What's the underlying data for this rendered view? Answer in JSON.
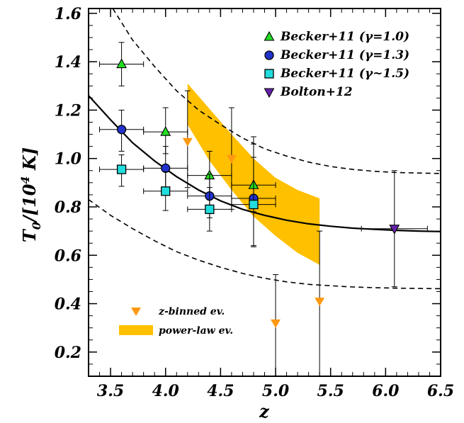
{
  "chart_data": {
    "type": "scatter",
    "xlabel": "z",
    "ylabel_main": "T",
    "ylabel_sub": "0",
    "ylabel_rest": "/[10",
    "ylabel_sup": "4",
    "ylabel_tail": " K]",
    "xlim": [
      3.3,
      6.5
    ],
    "ylim": [
      0.1,
      1.62
    ],
    "x_ticks": [
      "3.5",
      "4.0",
      "4.5",
      "5.0",
      "5.5",
      "6.0",
      "6.5"
    ],
    "y_ticks": [
      "0.2",
      "0.4",
      "0.6",
      "0.8",
      "1.0",
      "1.2",
      "1.4",
      "1.6"
    ],
    "legend": [
      {
        "label": "Becker+11 (γ=1.0)",
        "marker": "triangle-up",
        "color": "#22dd22"
      },
      {
        "label": "Becker+11 (γ=1.3)",
        "marker": "circle",
        "color": "#2233cc"
      },
      {
        "label": "Becker+11 (γ~1.5)",
        "marker": "square",
        "color": "#22dddd"
      },
      {
        "label": "Bolton+12",
        "marker": "triangle-down",
        "color": "#6622aa"
      }
    ],
    "legend2": [
      {
        "label": "z-binned ev.",
        "marker": "triangle-down-small",
        "color": "#ff9911"
      },
      {
        "label": "power-law ev.",
        "marker": "band",
        "color": "#ffc000"
      }
    ],
    "series": [
      {
        "marker": "triangle-up",
        "color": "#22dd22",
        "points": [
          {
            "x": 3.6,
            "y": 1.39,
            "xerr": [
              0.2,
              0.2
            ],
            "yerr": [
              0.09,
              0.09
            ]
          },
          {
            "x": 4.0,
            "y": 1.11,
            "xerr": [
              0.2,
              0.2
            ],
            "yerr": [
              0.09,
              0.1
            ]
          },
          {
            "x": 4.4,
            "y": 0.93,
            "xerr": [
              0.2,
              0.2
            ],
            "yerr": [
              0.08,
              0.1
            ]
          },
          {
            "x": 4.8,
            "y": 0.89,
            "xerr": [
              0.2,
              0.2
            ],
            "yerr": [
              0.11,
              0.2
            ]
          }
        ]
      },
      {
        "marker": "circle",
        "color": "#2233cc",
        "points": [
          {
            "x": 3.6,
            "y": 1.12,
            "xerr": [
              0.2,
              0.2
            ],
            "yerr": [
              0.09,
              0.08
            ]
          },
          {
            "x": 4.0,
            "y": 0.96,
            "xerr": [
              0.2,
              0.2
            ],
            "yerr": [
              0.09,
              0.09
            ]
          },
          {
            "x": 4.4,
            "y": 0.845,
            "xerr": [
              0.2,
              0.2
            ],
            "yerr": [
              0.09,
              0.09
            ]
          },
          {
            "x": 4.8,
            "y": 0.835,
            "xerr": [
              0.2,
              0.2
            ],
            "yerr": [
              0.2,
              0.17
            ]
          }
        ]
      },
      {
        "marker": "square",
        "color": "#22dddd",
        "points": [
          {
            "x": 3.6,
            "y": 0.955,
            "xerr": [
              0.2,
              0.2
            ],
            "yerr": [
              0.07,
              0.06
            ]
          },
          {
            "x": 4.0,
            "y": 0.865,
            "xerr": [
              0.2,
              0.2
            ],
            "yerr": [
              0.08,
              0.08
            ]
          },
          {
            "x": 4.4,
            "y": 0.79,
            "xerr": [
              0.2,
              0.2
            ],
            "yerr": [
              0.09,
              0.09
            ]
          },
          {
            "x": 4.8,
            "y": 0.81,
            "xerr": [
              0.2,
              0.2
            ],
            "yerr": [
              0.17,
              0.25
            ]
          }
        ]
      },
      {
        "marker": "triangle-down",
        "color": "#6622aa",
        "points": [
          {
            "x": 6.08,
            "y": 0.71,
            "xerr": [
              0.3,
              0.3
            ],
            "yerr": [
              0.24,
              0.24
            ]
          }
        ]
      },
      {
        "marker": "triangle-down-small",
        "color": "#ff9911",
        "points": [
          {
            "x": 4.2,
            "y": 1.07,
            "yerr": [
              0.19,
              0.21
            ]
          },
          {
            "x": 4.6,
            "y": 1.0,
            "yerr": [
              0.21,
              0.21
            ]
          },
          {
            "x": 5.0,
            "y": 0.32,
            "yerr": [
              0.22,
              0.2
            ]
          },
          {
            "x": 5.4,
            "y": 0.41,
            "yerr": [
              0.31,
              0.29
            ]
          }
        ]
      }
    ],
    "band": {
      "color": "#ffc000",
      "upper": [
        [
          4.2,
          1.31
        ],
        [
          4.4,
          1.205
        ],
        [
          4.6,
          1.1
        ],
        [
          4.8,
          1.0
        ],
        [
          5.0,
          0.92
        ],
        [
          5.2,
          0.87
        ],
        [
          5.4,
          0.835
        ]
      ],
      "lower": [
        [
          4.2,
          1.14
        ],
        [
          4.4,
          0.99
        ],
        [
          4.6,
          0.87
        ],
        [
          4.8,
          0.76
        ],
        [
          5.0,
          0.68
        ],
        [
          5.2,
          0.61
        ],
        [
          5.4,
          0.56
        ]
      ]
    },
    "curves": [
      {
        "style": "solid",
        "points": [
          [
            3.3,
            1.26
          ],
          [
            3.5,
            1.16
          ],
          [
            3.7,
            1.065
          ],
          [
            3.9,
            0.99
          ],
          [
            4.1,
            0.925
          ],
          [
            4.3,
            0.87
          ],
          [
            4.5,
            0.825
          ],
          [
            4.7,
            0.79
          ],
          [
            4.9,
            0.765
          ],
          [
            5.1,
            0.745
          ],
          [
            5.3,
            0.73
          ],
          [
            5.5,
            0.72
          ],
          [
            5.7,
            0.712
          ],
          [
            5.9,
            0.707
          ],
          [
            6.1,
            0.703
          ],
          [
            6.3,
            0.7
          ],
          [
            6.5,
            0.698
          ]
        ]
      },
      {
        "style": "dashed",
        "points": [
          [
            3.52,
            1.62
          ],
          [
            3.7,
            1.49
          ],
          [
            3.9,
            1.38
          ],
          [
            4.1,
            1.28
          ],
          [
            4.3,
            1.2
          ],
          [
            4.5,
            1.14
          ],
          [
            4.7,
            1.085
          ],
          [
            4.9,
            1.04
          ],
          [
            5.1,
            1.01
          ],
          [
            5.3,
            0.985
          ],
          [
            5.5,
            0.967
          ],
          [
            5.7,
            0.955
          ],
          [
            5.9,
            0.947
          ],
          [
            6.1,
            0.942
          ],
          [
            6.3,
            0.94
          ],
          [
            6.5,
            0.938
          ]
        ]
      },
      {
        "style": "dashed",
        "points": [
          [
            3.3,
            0.83
          ],
          [
            3.5,
            0.765
          ],
          [
            3.7,
            0.71
          ],
          [
            3.9,
            0.66
          ],
          [
            4.1,
            0.615
          ],
          [
            4.3,
            0.58
          ],
          [
            4.5,
            0.55
          ],
          [
            4.7,
            0.525
          ],
          [
            4.9,
            0.505
          ],
          [
            5.1,
            0.49
          ],
          [
            5.3,
            0.48
          ],
          [
            5.5,
            0.474
          ],
          [
            5.7,
            0.469
          ],
          [
            5.9,
            0.466
          ],
          [
            6.1,
            0.464
          ],
          [
            6.3,
            0.463
          ],
          [
            6.5,
            0.462
          ]
        ]
      }
    ]
  }
}
